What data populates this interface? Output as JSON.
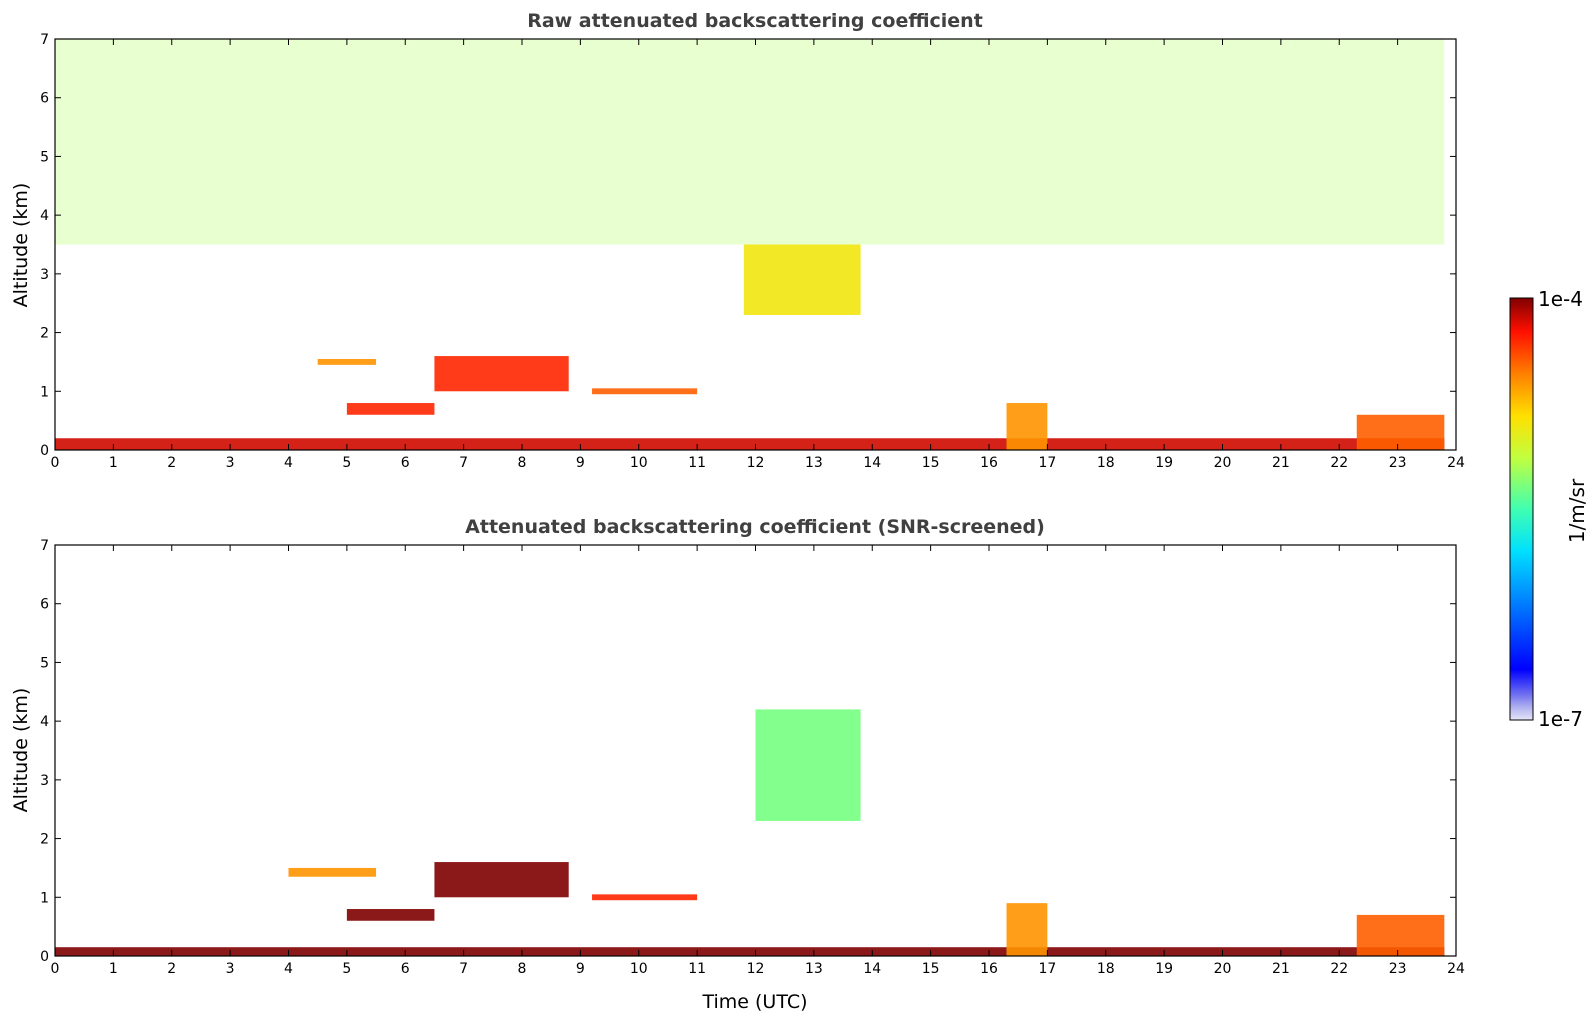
{
  "chart_data": [
    {
      "type": "heatmap",
      "title": "Raw attenuated backscattering coefficient",
      "xlabel": "",
      "ylabel": "Altitude (km)",
      "xlim": [
        0,
        24
      ],
      "ylim": [
        0,
        7
      ],
      "x_ticks": [
        "0",
        "1",
        "2",
        "3",
        "4",
        "5",
        "6",
        "7",
        "8",
        "9",
        "10",
        "11",
        "12",
        "13",
        "14",
        "15",
        "16",
        "17",
        "18",
        "19",
        "20",
        "21",
        "22",
        "23",
        "24"
      ],
      "y_ticks": [
        "0",
        "1",
        "2",
        "3",
        "4",
        "5",
        "6",
        "7"
      ],
      "features": [
        {
          "kind": "boundary_layer",
          "x": [
            0,
            23.8
          ],
          "y": [
            0,
            0.2
          ],
          "level": 0.95
        },
        {
          "kind": "noise_aloft",
          "x": [
            0,
            23.8
          ],
          "y": [
            3.5,
            7
          ],
          "level": 0.6
        },
        {
          "kind": "cloud_layer",
          "x": [
            4.5,
            5.5
          ],
          "y": [
            1.45,
            1.55
          ],
          "level": 0.8
        },
        {
          "kind": "cloud_layer",
          "x": [
            6.5,
            8.8
          ],
          "y": [
            1.0,
            1.6
          ],
          "level": 0.9
        },
        {
          "kind": "cloud_layer",
          "x": [
            9.2,
            11.0
          ],
          "y": [
            0.95,
            1.05
          ],
          "level": 0.85
        },
        {
          "kind": "cloud_layer",
          "x": [
            5.0,
            6.5
          ],
          "y": [
            0.6,
            0.8
          ],
          "level": 0.9
        },
        {
          "kind": "plume",
          "x": [
            11.8,
            13.8
          ],
          "y": [
            2.3,
            3.5
          ],
          "level": 0.7
        },
        {
          "kind": "convective_bl",
          "x": [
            16.3,
            17.0
          ],
          "y": [
            0,
            0.8
          ],
          "level": 0.8
        },
        {
          "kind": "convective_bl",
          "x": [
            22.3,
            23.8
          ],
          "y": [
            0,
            0.6
          ],
          "level": 0.85
        }
      ]
    },
    {
      "type": "heatmap",
      "title": "Attenuated backscattering coefficient (SNR-screened)",
      "xlabel": "Time (UTC)",
      "ylabel": "Altitude (km)",
      "xlim": [
        0,
        24
      ],
      "ylim": [
        0,
        7
      ],
      "x_ticks": [
        "0",
        "1",
        "2",
        "3",
        "4",
        "5",
        "6",
        "7",
        "8",
        "9",
        "10",
        "11",
        "12",
        "13",
        "14",
        "15",
        "16",
        "17",
        "18",
        "19",
        "20",
        "21",
        "22",
        "23",
        "24"
      ],
      "y_ticks": [
        "0",
        "1",
        "2",
        "3",
        "4",
        "5",
        "6",
        "7"
      ],
      "features": [
        {
          "kind": "boundary_layer",
          "x": [
            0,
            23.8
          ],
          "y": [
            0,
            0.15
          ],
          "level": 1.0
        },
        {
          "kind": "cloud_layer",
          "x": [
            4.0,
            5.5
          ],
          "y": [
            1.35,
            1.5
          ],
          "level": 0.8
        },
        {
          "kind": "cloud_layer",
          "x": [
            6.5,
            8.8
          ],
          "y": [
            1.0,
            1.6
          ],
          "level": 1.0
        },
        {
          "kind": "cloud_layer",
          "x": [
            9.2,
            11.0
          ],
          "y": [
            0.95,
            1.05
          ],
          "level": 0.9
        },
        {
          "kind": "cloud_layer",
          "x": [
            5.0,
            6.5
          ],
          "y": [
            0.6,
            0.8
          ],
          "level": 1.0
        },
        {
          "kind": "plume",
          "x": [
            12.0,
            13.8
          ],
          "y": [
            2.3,
            4.2
          ],
          "level": 0.55
        },
        {
          "kind": "convective_bl",
          "x": [
            16.3,
            17.0
          ],
          "y": [
            0,
            0.9
          ],
          "level": 0.8
        },
        {
          "kind": "convective_bl",
          "x": [
            22.3,
            23.8
          ],
          "y": [
            0,
            0.7
          ],
          "level": 0.85
        }
      ]
    }
  ],
  "colorbar": {
    "label": "1/m/sr",
    "max_label": "1e-4",
    "min_label": "1e-7",
    "colormap": "jet",
    "scale": "log",
    "range": [
      1e-07,
      0.0001
    ]
  }
}
